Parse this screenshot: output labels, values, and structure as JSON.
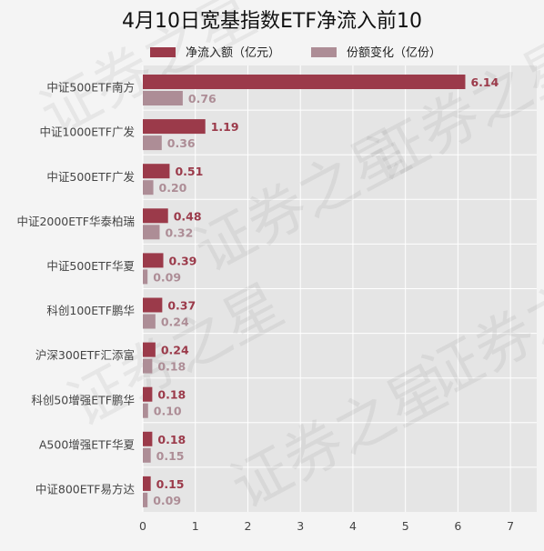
{
  "chart_data": {
    "type": "bar",
    "orientation": "horizontal",
    "title": "4月10日宽基指数ETF净流入前10",
    "categories": [
      "中证500ETF南方",
      "中证1000ETF广发",
      "中证500ETF广发",
      "中证2000ETF华泰柏瑞",
      "中证500ETF华夏",
      "科创100ETF鹏华",
      "沪深300ETF汇添富",
      "科创50增强ETF鹏华",
      "A500增强ETF华夏",
      "中证800ETF易方达"
    ],
    "series": [
      {
        "name": "净流入额（亿元）",
        "color": "#9b3a4a",
        "values": [
          6.14,
          1.19,
          0.51,
          0.48,
          0.39,
          0.37,
          0.24,
          0.18,
          0.18,
          0.15
        ],
        "labels": [
          "6.14",
          "1.19",
          "0.51",
          "0.48",
          "0.39",
          "0.37",
          "0.24",
          "0.18",
          "0.18",
          "0.15"
        ]
      },
      {
        "name": "份额变化（亿份）",
        "color": "#ad8d96",
        "values": [
          0.76,
          0.36,
          0.2,
          0.32,
          0.09,
          0.24,
          0.18,
          0.1,
          0.15,
          0.09
        ],
        "labels": [
          "0.76",
          "0.36",
          "0.20",
          "0.32",
          "0.09",
          "0.24",
          "0.18",
          "0.10",
          "0.15",
          "0.09"
        ]
      }
    ],
    "xlim": [
      0,
      7.5
    ],
    "xticks": [
      "0",
      "1",
      "2",
      "3",
      "4",
      "5",
      "6",
      "7"
    ],
    "grid": true,
    "legend_position": "top",
    "plot_background": "#e5e5e5",
    "watermark": "证券之星"
  }
}
